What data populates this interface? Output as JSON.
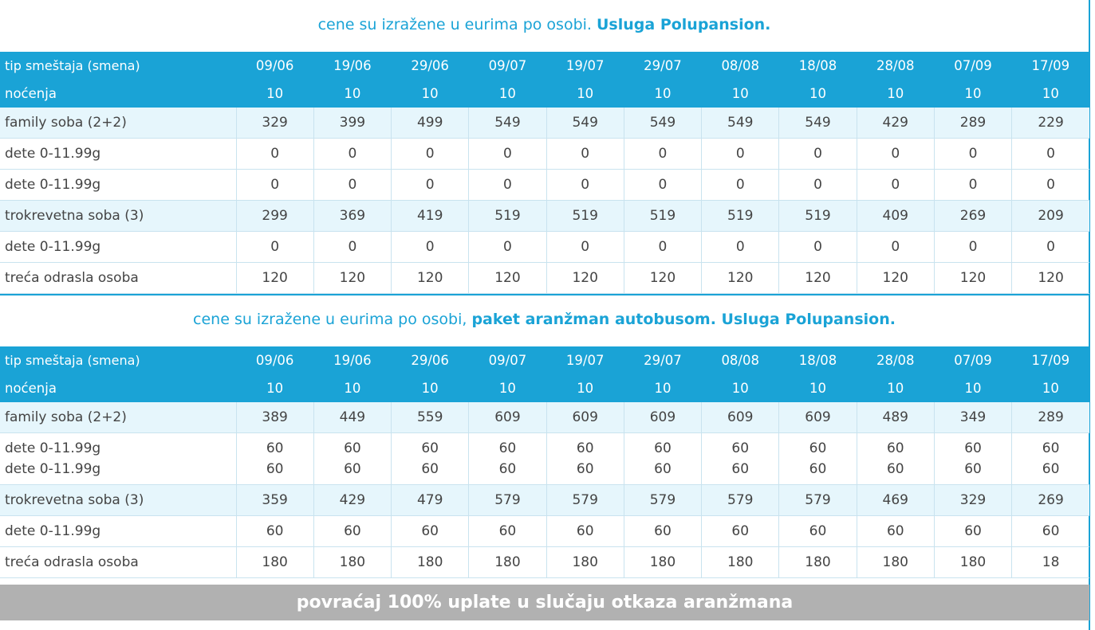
{
  "section1": {
    "caption_normal": "cene su izražene u eurima po osobi. ",
    "caption_bold": "Usluga Polupansion.",
    "header": [
      "tip smeštaja (smena)",
      "09/06",
      "19/06",
      "29/06",
      "09/07",
      "19/07",
      "29/07",
      "08/08",
      "18/08",
      "28/08",
      "07/09",
      "17/09"
    ],
    "nights": [
      "noćenja",
      "10",
      "10",
      "10",
      "10",
      "10",
      "10",
      "10",
      "10",
      "10",
      "10",
      "10"
    ],
    "rows": [
      {
        "label": "family soba (2+2)",
        "highlight": true,
        "values": [
          "329",
          "399",
          "499",
          "549",
          "549",
          "549",
          "549",
          "549",
          "429",
          "289",
          "229"
        ]
      },
      {
        "label": "dete 0-11.99g",
        "highlight": false,
        "values": [
          "0",
          "0",
          "0",
          "0",
          "0",
          "0",
          "0",
          "0",
          "0",
          "0",
          "0"
        ]
      },
      {
        "label": "dete 0-11.99g",
        "highlight": false,
        "values": [
          "0",
          "0",
          "0",
          "0",
          "0",
          "0",
          "0",
          "0",
          "0",
          "0",
          "0"
        ]
      },
      {
        "label": "trokrevetna soba (3)",
        "highlight": true,
        "values": [
          "299",
          "369",
          "419",
          "519",
          "519",
          "519",
          "519",
          "519",
          "409",
          "269",
          "209"
        ]
      },
      {
        "label": "dete 0-11.99g",
        "highlight": false,
        "values": [
          "0",
          "0",
          "0",
          "0",
          "0",
          "0",
          "0",
          "0",
          "0",
          "0",
          "0"
        ]
      },
      {
        "label": "treća odrasla osoba",
        "highlight": false,
        "values": [
          "120",
          "120",
          "120",
          "120",
          "120",
          "120",
          "120",
          "120",
          "120",
          "120",
          "120"
        ]
      }
    ]
  },
  "section2": {
    "caption_normal": "cene su izražene u eurima po osobi, ",
    "caption_bold": "paket aranžman autobusom. Usluga Polupansion.",
    "header": [
      "tip smeštaja (smena)",
      "09/06",
      "19/06",
      "29/06",
      "09/07",
      "19/07",
      "29/07",
      "08/08",
      "18/08",
      "28/08",
      "07/09",
      "17/09"
    ],
    "nights": [
      "noćenja",
      "10",
      "10",
      "10",
      "10",
      "10",
      "10",
      "10",
      "10",
      "10",
      "10",
      "10"
    ],
    "rows": [
      {
        "label": "family soba (2+2)",
        "highlight": true,
        "values": [
          "389",
          "449",
          "559",
          "609",
          "609",
          "609",
          "609",
          "609",
          "489",
          "349",
          "289"
        ]
      },
      {
        "label": "dete 0-11.99g",
        "label2": "dete 0-11.99g",
        "highlight": false,
        "values": [
          "60",
          "60",
          "60",
          "60",
          "60",
          "60",
          "60",
          "60",
          "60",
          "60",
          "60"
        ],
        "values2": [
          "60",
          "60",
          "60",
          "60",
          "60",
          "60",
          "60",
          "60",
          "60",
          "60",
          "60"
        ]
      },
      {
        "label": "trokrevetna soba (3)",
        "highlight": true,
        "values": [
          "359",
          "429",
          "479",
          "579",
          "579",
          "579",
          "579",
          "579",
          "469",
          "329",
          "269"
        ]
      },
      {
        "label": "dete 0-11.99g",
        "highlight": false,
        "values": [
          "60",
          "60",
          "60",
          "60",
          "60",
          "60",
          "60",
          "60",
          "60",
          "60",
          "60"
        ]
      },
      {
        "label": "treća odrasla osoba",
        "highlight": false,
        "values": [
          "180",
          "180",
          "180",
          "180",
          "180",
          "180",
          "180",
          "180",
          "180",
          "180",
          "18"
        ]
      }
    ]
  },
  "footer": {
    "text": "povraćaj 100% uplate u slučaju otkaza aranžmana"
  },
  "colors": {
    "accent": "#1aa3d6",
    "row_highlight": "#e6f6fc",
    "footer_bg": "#b1b1b1"
  }
}
